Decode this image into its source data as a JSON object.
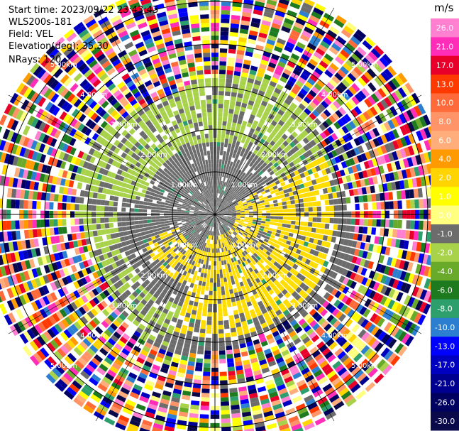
{
  "header": {
    "start_time": "Start time: 2023/09/22 23:43:43",
    "instrument": "WLS200s-181",
    "field": "Field: VEL",
    "elevation": "Elevation(deg): 35.30",
    "nrays": "NRays: 120"
  },
  "chart_data": {
    "type": "heatmap",
    "projection": "polar-ppi",
    "nrays": 120,
    "range_rings_km": [
      1.0,
      2.0,
      3.0,
      4.0,
      5.0
    ],
    "range_ring_labels": [
      "1.00km",
      "2.00km",
      "3.00km",
      "4.00km",
      "5.00km"
    ],
    "colorbar": {
      "unit": "m/s",
      "tick_labels": [
        "26.0",
        "21.0",
        "17.0",
        "13.0",
        "10.0",
        "8.0",
        "6.0",
        "4.0",
        "2.0",
        "1.0",
        "0.0",
        "-1.0",
        "-2.0",
        "-4.0",
        "-6.0",
        "-8.0",
        "-10.0",
        "-13.0",
        "-17.0",
        "-21.0",
        "-26.0",
        "-30.0"
      ],
      "colors": [
        "#ff7fd0",
        "#ff2db8",
        "#e8002a",
        "#ff3a00",
        "#ff6a3a",
        "#ff9468",
        "#ffad7a",
        "#ff9a00",
        "#ffd400",
        "#ffff00",
        "#ffff80",
        "#6c6c6c",
        "#a8d24a",
        "#6aaa2a",
        "#1e7a1e",
        "#2d9f6c",
        "#2c7fd0",
        "#0000ff",
        "#0000c0",
        "#000090",
        "#000060",
        "#0a0a4a"
      ]
    },
    "regions": [
      {
        "description_value": "near-zero (gray)",
        "range_km": [
          0,
          3.2
        ]
      },
      {
        "description_value": "-2 to -4 (green)",
        "range_km": [
          2.0,
          3.2
        ],
        "sector": "north-west"
      },
      {
        "description_value": "2 to 4 (yellow)",
        "range_km": [
          0.5,
          3.0
        ],
        "sector": "south-east"
      },
      {
        "description_value": "noisy random (all colors)",
        "range_km": [
          3.2,
          5.5
        ]
      }
    ]
  }
}
